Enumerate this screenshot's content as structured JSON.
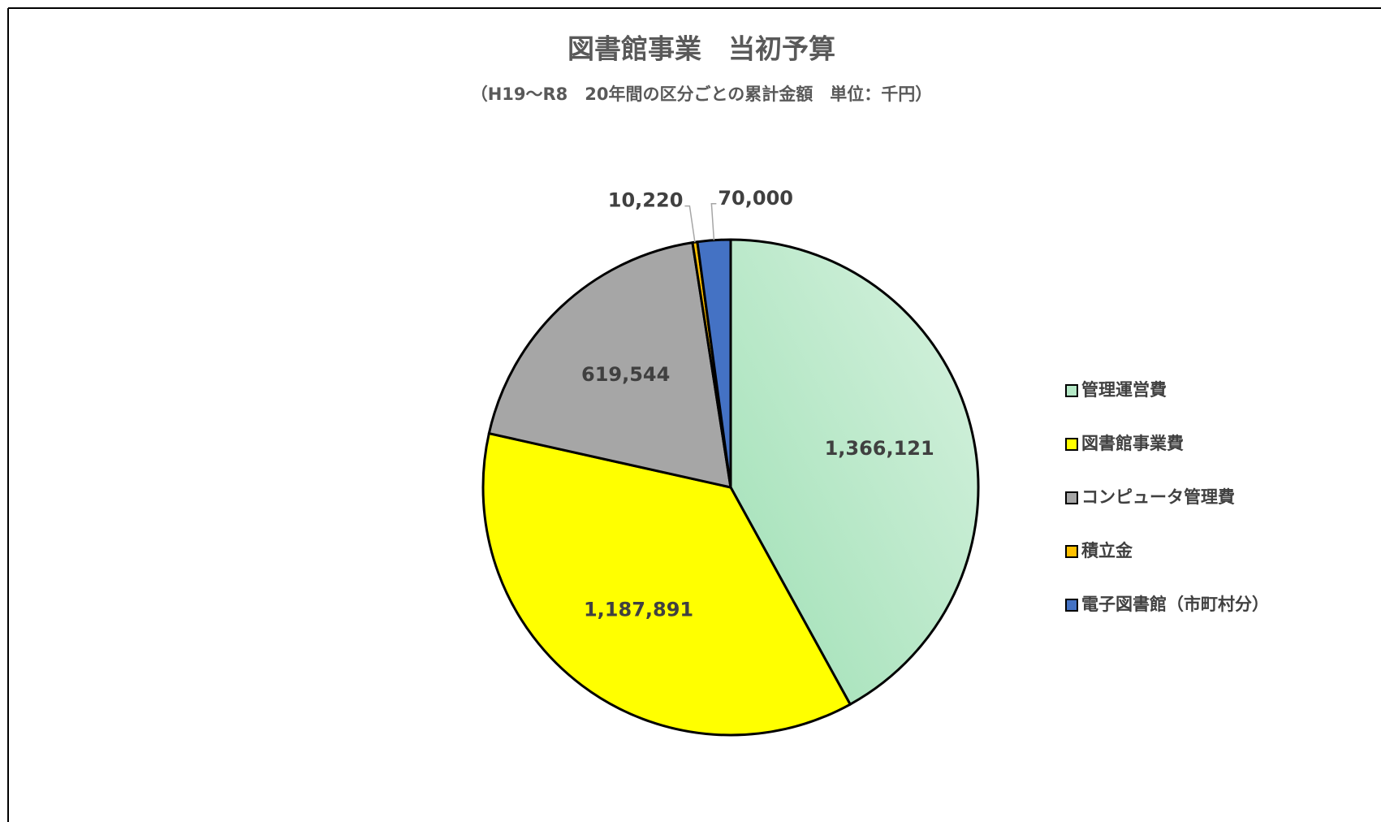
{
  "chart_data": {
    "type": "pie",
    "title": "図書館事業　当初予算",
    "subtitle": "（H19～R8　20年間の区分ごとの累計金額　単位：千円）",
    "categories": [
      "管理運営費",
      "図書館事業費",
      "コンピュータ管理費",
      "積立金",
      "電子図書館（市町村分）"
    ],
    "values": [
      1366121,
      1187891,
      619544,
      10220,
      70000
    ],
    "value_labels": [
      "1,366,121",
      "1,187,891",
      "619,544",
      "10,220",
      "70,000"
    ],
    "colors": [
      "#b4e8c6",
      "#ffff00",
      "#a6a6a6",
      "#ffc000",
      "#4472c4"
    ],
    "legend": "right"
  }
}
